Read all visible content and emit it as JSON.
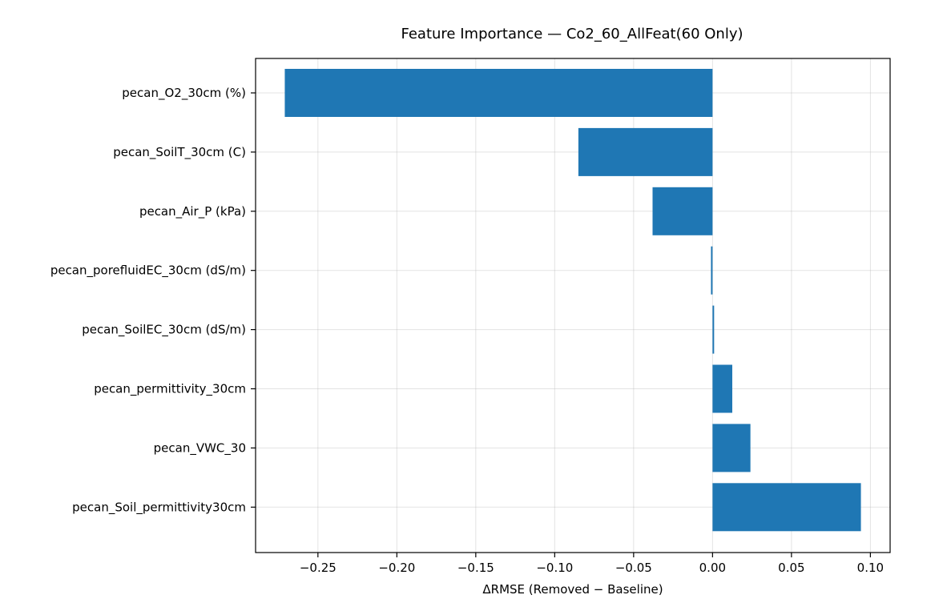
{
  "chart_data": {
    "type": "bar",
    "orientation": "horizontal",
    "title": "Feature Importance — Co2_60_AllFeat(60 Only)",
    "xlabel": "ΔRMSE (Removed − Baseline)",
    "ylabel": "",
    "categories": [
      "pecan_O2_30cm (%)",
      "pecan_SoilT_30cm (C)",
      "pecan_Air_P (kPa)",
      "pecan_porefluidEC_30cm (dS/m)",
      "pecan_SoilEC_30cm (dS/m)",
      "pecan_permittivity_30cm",
      "pecan_VWC_30",
      "pecan_Soil_permittivity30cm"
    ],
    "values": [
      -0.271,
      -0.085,
      -0.038,
      -0.001,
      0.001,
      0.0125,
      0.024,
      0.094
    ],
    "xlim": [
      -0.2895,
      0.1125
    ],
    "xticks": [
      -0.25,
      -0.2,
      -0.15,
      -0.1,
      -0.05,
      0.0,
      0.05,
      0.1
    ],
    "xtick_labels": [
      "−0.25",
      "−0.20",
      "−0.15",
      "−0.10",
      "−0.05",
      "0.00",
      "0.05",
      "0.10"
    ],
    "bar_color": "#1f77b4",
    "grid": true,
    "legend": "none"
  }
}
